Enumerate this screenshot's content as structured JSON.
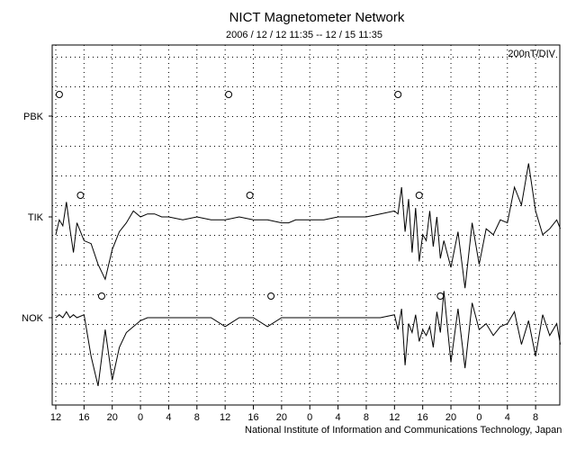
{
  "title": "NICT Magnetometer Network",
  "subtitle": "2006 / 12 / 12   11:35 -- 12 / 15   11:35",
  "credit": "National Institute of Information and Communications Technology, Japan",
  "chart_data": {
    "type": "line",
    "scale_label": "200nT/DIV",
    "x_tick_labels": [
      "12",
      "16",
      "20",
      "0",
      "4",
      "8",
      "12",
      "16",
      "20",
      "0",
      "4",
      "8",
      "12",
      "16",
      "20",
      "0",
      "4",
      "8"
    ],
    "x_range_hours": [
      0,
      72
    ],
    "stations": [
      "PBK",
      "TIK",
      "NOK"
    ],
    "grid": true,
    "markers_hours": {
      "PBK": [
        0.5,
        24.5,
        48.5
      ],
      "TIK": [
        3.5,
        27.5,
        51.5
      ],
      "NOK": [
        6.5,
        30.5,
        54.5
      ]
    },
    "series": [
      {
        "name": "TIK",
        "x_hours": [
          0,
          0.5,
          1,
          1.5,
          2,
          2.5,
          3,
          4,
          5,
          6,
          7,
          8,
          9,
          10,
          11,
          12,
          13,
          14,
          15,
          16,
          18,
          20,
          22,
          24,
          26,
          28,
          30,
          32,
          33,
          34,
          35,
          36,
          38,
          40,
          42,
          44,
          46,
          48,
          48.5,
          49,
          49.5,
          50,
          50.5,
          51,
          51.5,
          52,
          52.5,
          53,
          53.5,
          54,
          54.5,
          55,
          56,
          57,
          58,
          59,
          60,
          61,
          62,
          63,
          64,
          65,
          66,
          67,
          68,
          69,
          70,
          71,
          71.5
        ],
        "values": [
          -0.6,
          -0.1,
          -0.3,
          0.5,
          -0.4,
          -1.2,
          -0.2,
          -0.8,
          -0.9,
          -1.6,
          -2.1,
          -1.1,
          -0.5,
          -0.2,
          0.2,
          0.0,
          0.1,
          0.1,
          0.0,
          0.0,
          -0.1,
          0.0,
          -0.1,
          -0.1,
          0.0,
          -0.1,
          -0.1,
          -0.2,
          -0.2,
          -0.1,
          -0.1,
          -0.1,
          -0.1,
          0.0,
          0.0,
          0.0,
          0.1,
          0.2,
          0.1,
          1.0,
          -0.5,
          0.6,
          -1.2,
          0.3,
          -1.5,
          -0.6,
          -0.8,
          0.2,
          -1.0,
          0.0,
          -1.4,
          -0.8,
          -1.7,
          -0.5,
          -2.4,
          -0.2,
          -1.6,
          -0.4,
          -0.6,
          -0.1,
          -0.2,
          1.0,
          0.4,
          1.8,
          0.2,
          -0.6,
          -0.4,
          -0.1,
          -0.4
        ]
      },
      {
        "name": "NOK",
        "x_hours": [
          0,
          0.5,
          1,
          1.5,
          2,
          2.5,
          3,
          4,
          5,
          6,
          7,
          8,
          9,
          10,
          11,
          12,
          13,
          14,
          15,
          16,
          18,
          20,
          22,
          24,
          26,
          28,
          30,
          32,
          33,
          34,
          35,
          36,
          38,
          40,
          42,
          44,
          46,
          48,
          48.5,
          49,
          49.5,
          50,
          50.5,
          51,
          51.5,
          52,
          52.5,
          53,
          53.5,
          54,
          54.5,
          55,
          56,
          57,
          58,
          59,
          60,
          61,
          62,
          63,
          64,
          65,
          66,
          67,
          68,
          69,
          70,
          71,
          71.5
        ],
        "values": [
          0.0,
          0.1,
          0.0,
          0.2,
          0.0,
          0.1,
          0.0,
          0.1,
          -1.3,
          -2.3,
          -0.4,
          -2.1,
          -1.0,
          -0.5,
          -0.3,
          -0.1,
          0.0,
          0.0,
          0.0,
          0.0,
          0.0,
          0.0,
          0.0,
          -0.3,
          0.0,
          0.0,
          -0.3,
          0.0,
          0.0,
          0.0,
          0.0,
          0.0,
          0.0,
          0.0,
          0.0,
          0.0,
          0.0,
          0.1,
          -0.4,
          0.3,
          -1.6,
          -0.2,
          -0.5,
          0.1,
          -0.8,
          -0.4,
          -0.6,
          -0.3,
          -1.0,
          0.2,
          -0.5,
          0.9,
          -1.5,
          0.3,
          -1.7,
          0.5,
          -0.4,
          -0.2,
          -0.6,
          -0.3,
          -0.2,
          0.2,
          -0.9,
          -0.1,
          -1.3,
          0.1,
          -0.6,
          -0.2,
          -0.9
        ]
      }
    ]
  }
}
